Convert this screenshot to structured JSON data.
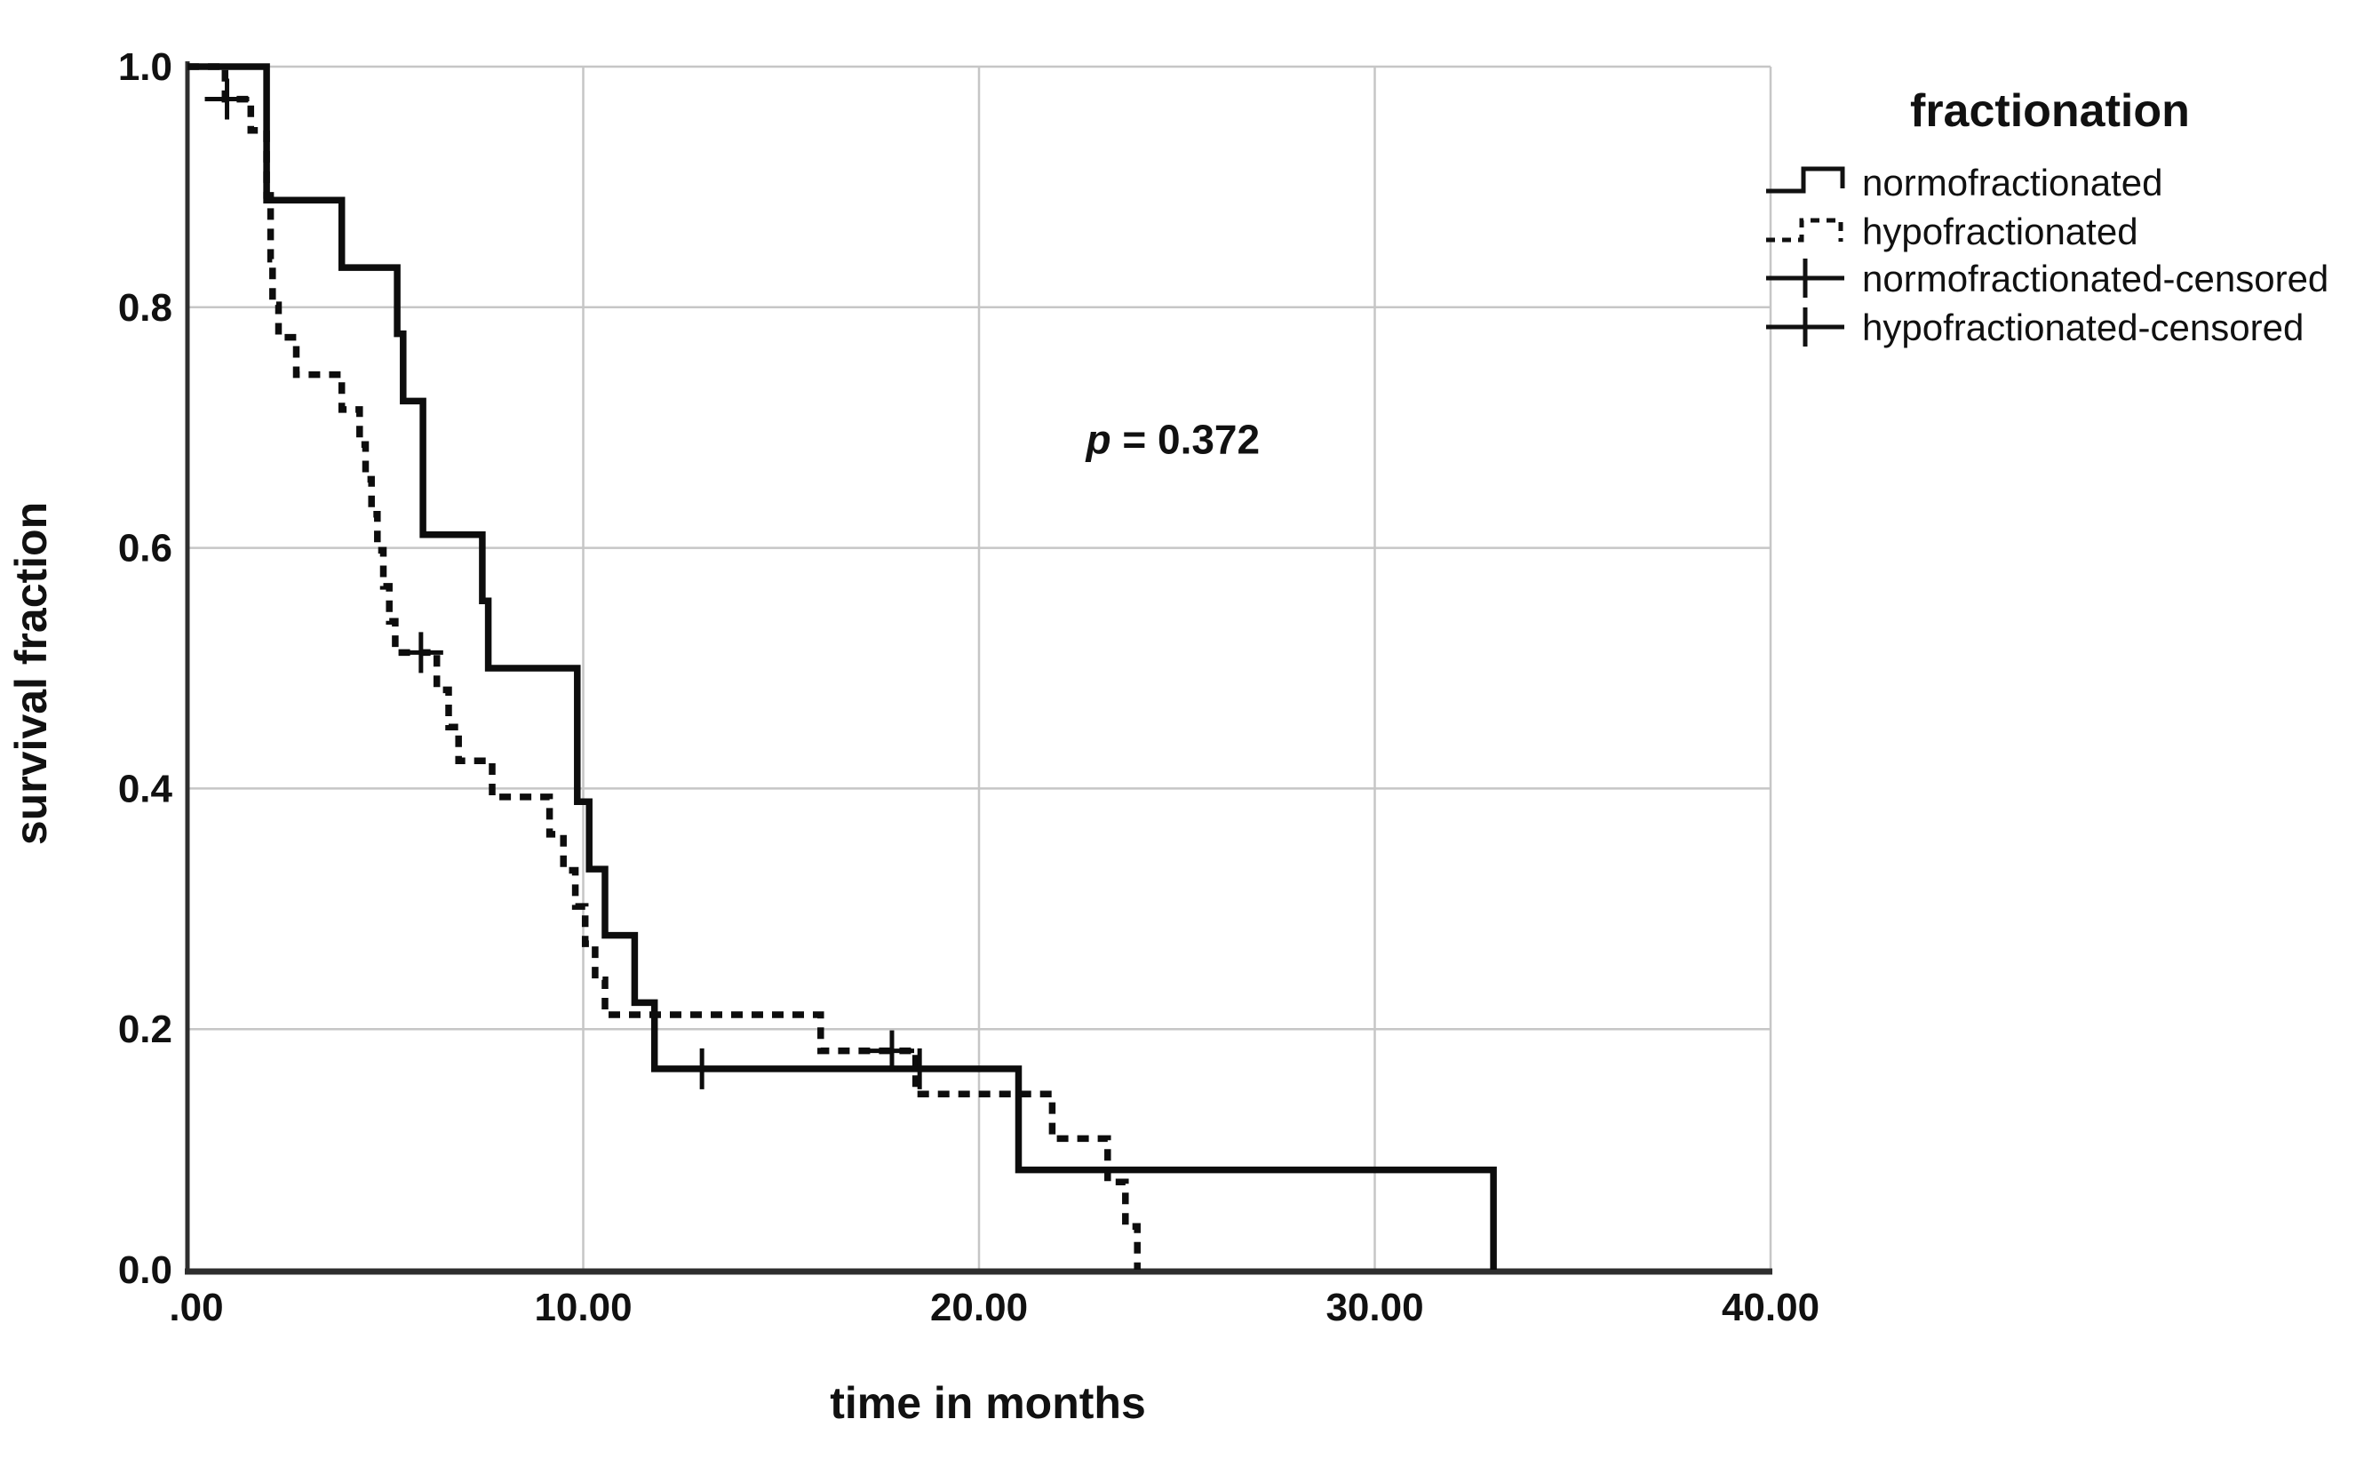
{
  "colors": {
    "background": "#ffffff",
    "curve": "#0d0d0d",
    "grid": "#c6c6c6",
    "axis": "#2e2e2e",
    "text": "#111111"
  },
  "chart_data": {
    "type": "line",
    "subtype": "kaplan-meier-step",
    "title": "",
    "xlabel": "time in months",
    "ylabel": "survival fraction",
    "xlim": [
      0,
      40
    ],
    "ylim": [
      0.0,
      1.0
    ],
    "grid": true,
    "legend_position": "right",
    "x_tick_values": [
      0,
      10,
      20,
      30,
      40
    ],
    "x_tick_labels": [
      ".00",
      "10.00",
      "20.00",
      "30.00",
      "40.00"
    ],
    "y_tick_values": [
      0.0,
      0.2,
      0.4,
      0.6,
      0.8,
      1.0
    ],
    "y_tick_labels": [
      "0.0",
      "0.2",
      "0.4",
      "0.6",
      "0.8",
      "1.0"
    ],
    "annotation": {
      "prefix_italic": "p",
      "rest": " = 0.372",
      "x_months": 24.9,
      "y_fraction": 0.69
    },
    "legend": {
      "title": "fractionation",
      "entries": [
        {
          "label": "normofractionated",
          "marker": "solid-step"
        },
        {
          "label": "hypofractionated",
          "marker": "dashed-step"
        },
        {
          "label": "normofractionated-censored",
          "marker": "plus-on-solid-line"
        },
        {
          "label": "hypofractionated-censored",
          "marker": "plus-on-solid-line"
        }
      ]
    },
    "series": [
      {
        "name": "normofractionated",
        "line": "solid",
        "start": [
          0,
          1.0
        ],
        "events": [
          [
            2.0,
            0.889
          ],
          [
            3.9,
            0.833
          ],
          [
            5.3,
            0.778
          ],
          [
            5.45,
            0.722
          ],
          [
            5.95,
            0.611
          ],
          [
            7.45,
            0.556
          ],
          [
            7.6,
            0.5
          ],
          [
            9.85,
            0.389
          ],
          [
            10.15,
            0.333
          ],
          [
            10.55,
            0.278
          ],
          [
            11.3,
            0.222
          ],
          [
            11.8,
            0.167
          ],
          [
            21.0,
            0.083
          ],
          [
            33.0,
            0.0
          ]
        ],
        "censored": [
          [
            13.0,
            0.167
          ],
          [
            18.5,
            0.167
          ]
        ]
      },
      {
        "name": "hypofractionated",
        "line": "dashed",
        "start": [
          0,
          1.0
        ],
        "events": [
          [
            0.95,
            0.973
          ],
          [
            1.6,
            0.947
          ],
          [
            2.0,
            0.893
          ],
          [
            2.1,
            0.84
          ],
          [
            2.15,
            0.802
          ],
          [
            2.3,
            0.775
          ],
          [
            2.75,
            0.744
          ],
          [
            3.9,
            0.715
          ],
          [
            4.35,
            0.686
          ],
          [
            4.5,
            0.657
          ],
          [
            4.65,
            0.628
          ],
          [
            4.8,
            0.598
          ],
          [
            4.95,
            0.568
          ],
          [
            5.1,
            0.539
          ],
          [
            5.25,
            0.513
          ],
          [
            6.3,
            0.482
          ],
          [
            6.6,
            0.451
          ],
          [
            6.85,
            0.423
          ],
          [
            7.7,
            0.393
          ],
          [
            9.15,
            0.362
          ],
          [
            9.5,
            0.332
          ],
          [
            9.8,
            0.302
          ],
          [
            10.05,
            0.271
          ],
          [
            10.3,
            0.241
          ],
          [
            10.55,
            0.212
          ],
          [
            16.0,
            0.182
          ],
          [
            18.4,
            0.146
          ],
          [
            21.85,
            0.109
          ],
          [
            23.25,
            0.073
          ],
          [
            23.7,
            0.036
          ],
          [
            24.0,
            0.0
          ]
        ],
        "censored": [
          [
            1.0,
            0.973
          ],
          [
            5.9,
            0.513
          ],
          [
            17.8,
            0.182
          ]
        ]
      }
    ]
  }
}
